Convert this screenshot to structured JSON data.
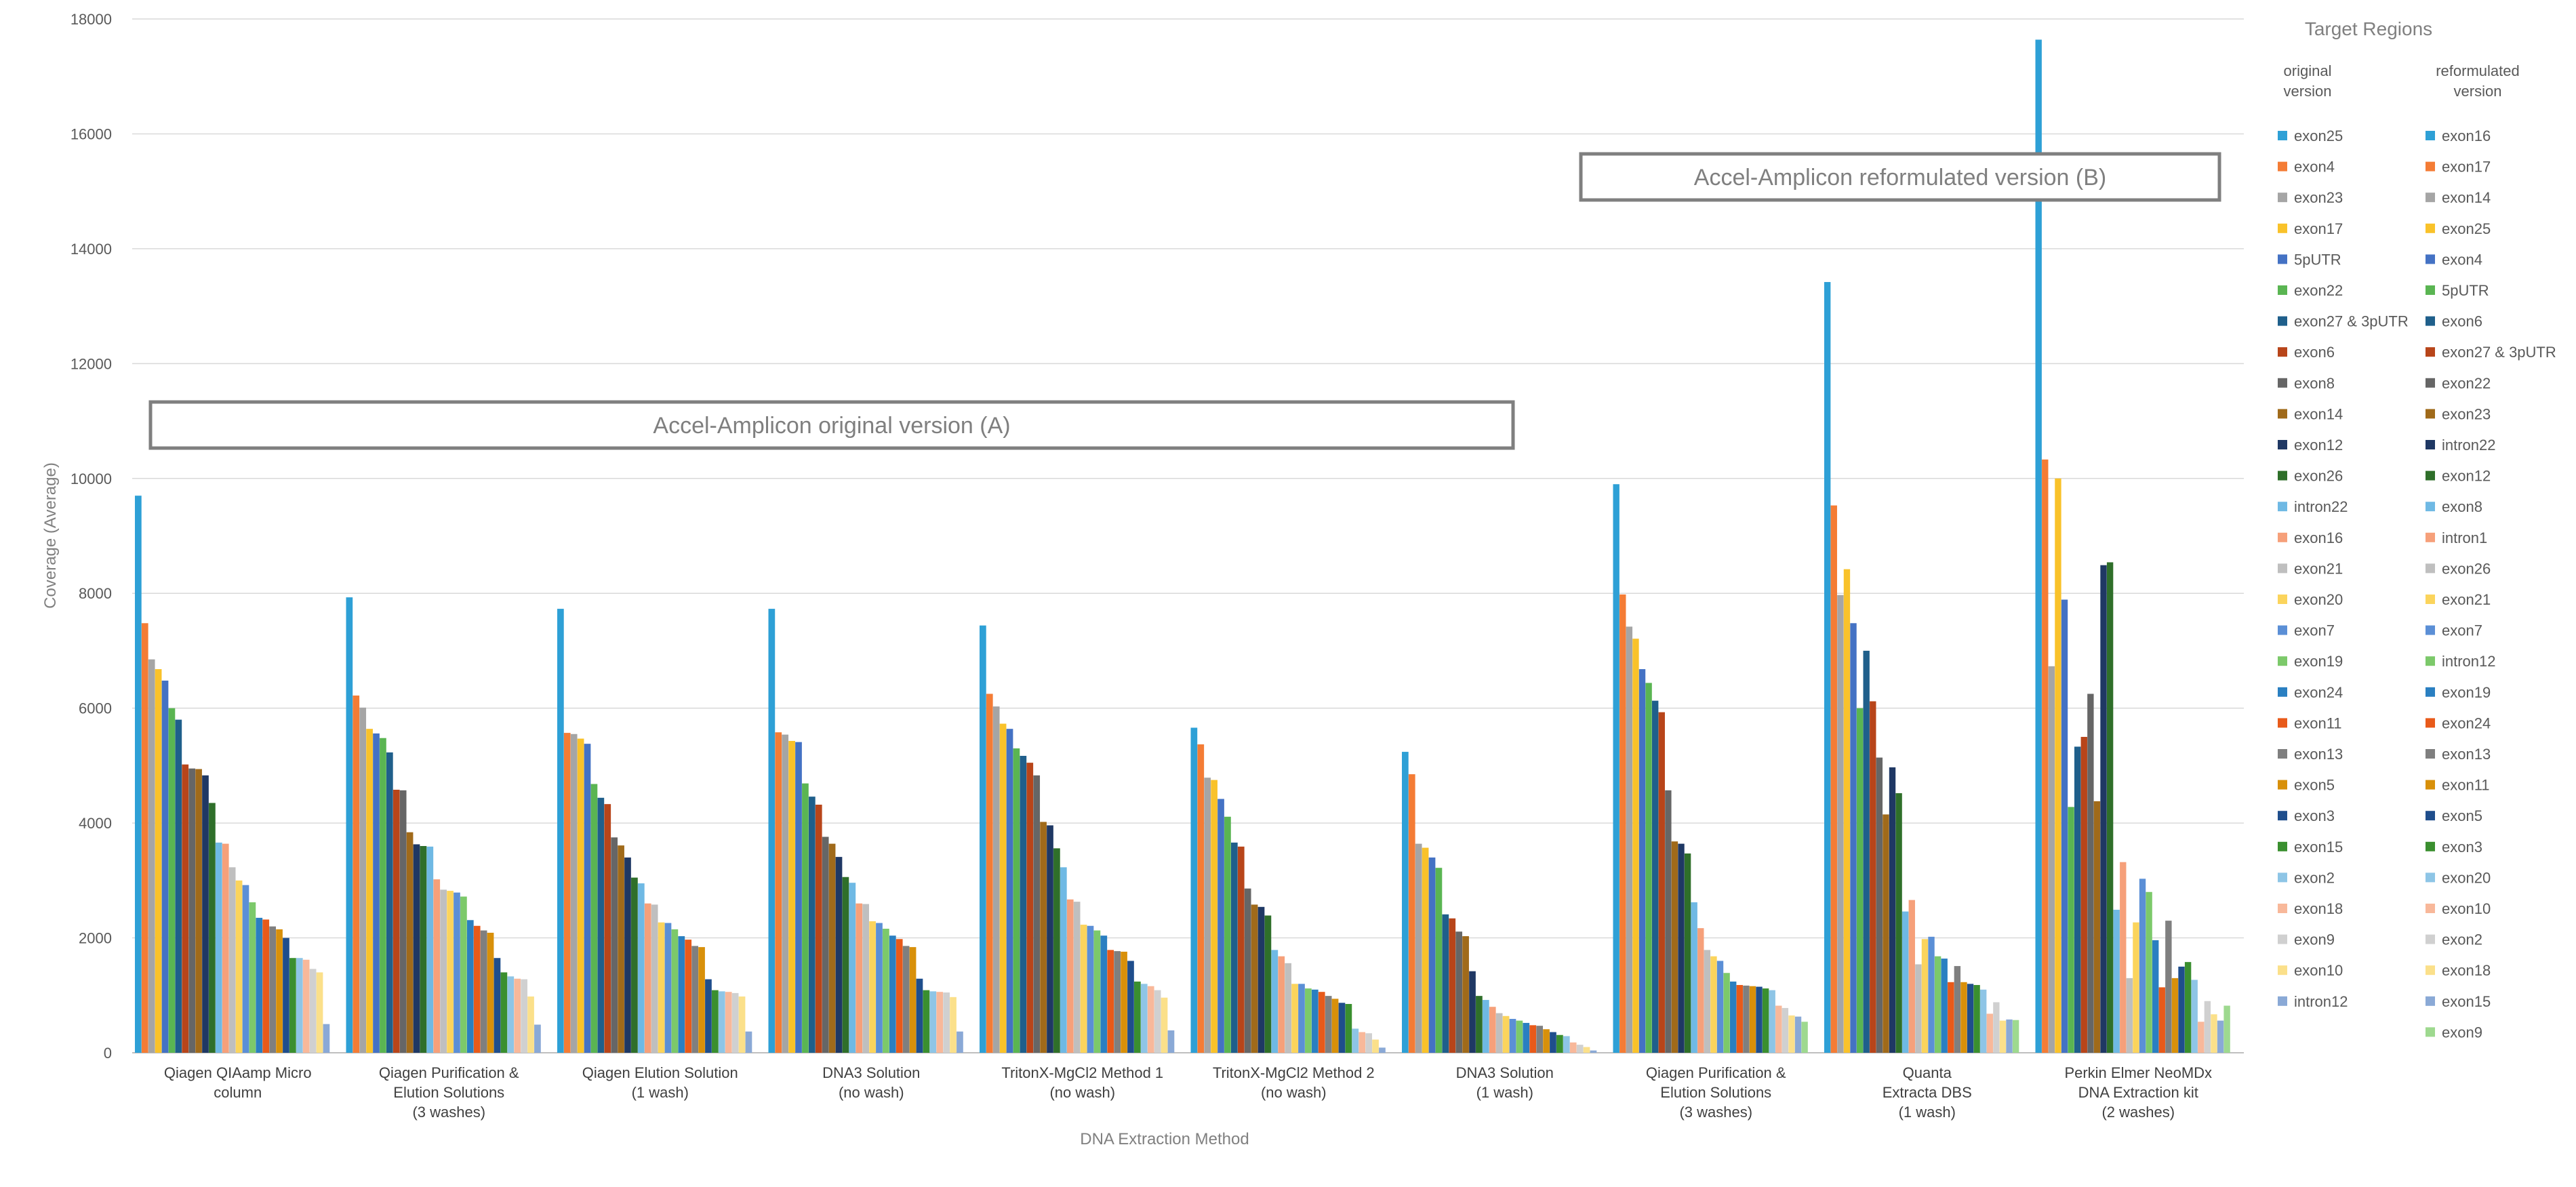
{
  "chart_data": {
    "type": "bar",
    "xlabel": "DNA Extraction Method",
    "ylabel": "Coverage (Average)",
    "ylim": [
      0,
      18000
    ],
    "yticks": [
      "0",
      "2000",
      "4000",
      "6000",
      "8000",
      "10000",
      "12000",
      "14000",
      "16000",
      "18000"
    ],
    "grid": true,
    "legend_position": "right",
    "legend": {
      "title": "Target Regions",
      "col1_head": [
        "original",
        "version"
      ],
      "col2_head": [
        "reformulated",
        "version"
      ],
      "col1": [
        {
          "name": "exon25",
          "color": "#2ea0d6"
        },
        {
          "name": "exon4",
          "color": "#f47c35"
        },
        {
          "name": "exon23",
          "color": "#a5a5a5"
        },
        {
          "name": "exon17",
          "color": "#f9c22a"
        },
        {
          "name": "5pUTR",
          "color": "#4472c4"
        },
        {
          "name": "exon22",
          "color": "#5ab552"
        },
        {
          "name": "exon27 & 3pUTR",
          "color": "#1f5f8b"
        },
        {
          "name": "exon6",
          "color": "#b8451a"
        },
        {
          "name": "exon8",
          "color": "#666666"
        },
        {
          "name": "exon14",
          "color": "#a06a1a"
        },
        {
          "name": "exon12",
          "color": "#1f3864"
        },
        {
          "name": "exon26",
          "color": "#2f6f2a"
        },
        {
          "name": "intron22",
          "color": "#6fb9e4"
        },
        {
          "name": "exon16",
          "color": "#f6a07a"
        },
        {
          "name": "exon21",
          "color": "#bfbfbf"
        },
        {
          "name": "exon20",
          "color": "#fbd45c"
        },
        {
          "name": "exon7",
          "color": "#5b8fd6"
        },
        {
          "name": "exon19",
          "color": "#7cc96a"
        },
        {
          "name": "exon24",
          "color": "#2a7fc1"
        },
        {
          "name": "exon11",
          "color": "#e85a1a"
        },
        {
          "name": "exon13",
          "color": "#7f7f7f"
        },
        {
          "name": "exon5",
          "color": "#d8900a"
        },
        {
          "name": "exon3",
          "color": "#1f4e8c"
        },
        {
          "name": "exon15",
          "color": "#3a8f2f"
        },
        {
          "name": "exon2",
          "color": "#8ec5e6"
        },
        {
          "name": "exon18",
          "color": "#f8b89a"
        },
        {
          "name": "exon9",
          "color": "#d0d0d0"
        },
        {
          "name": "exon10",
          "color": "#fbe08a"
        },
        {
          "name": "intron12",
          "color": "#8aa9d6"
        }
      ],
      "col2": [
        {
          "name": "exon16",
          "color": "#2ea0d6"
        },
        {
          "name": "exon17",
          "color": "#f47c35"
        },
        {
          "name": "exon14",
          "color": "#a5a5a5"
        },
        {
          "name": "exon25",
          "color": "#f9c22a"
        },
        {
          "name": "exon4",
          "color": "#4472c4"
        },
        {
          "name": "5pUTR",
          "color": "#5ab552"
        },
        {
          "name": "exon6",
          "color": "#1f5f8b"
        },
        {
          "name": "exon27 & 3pUTR",
          "color": "#b8451a"
        },
        {
          "name": "exon22",
          "color": "#666666"
        },
        {
          "name": "exon23",
          "color": "#a06a1a"
        },
        {
          "name": "intron22",
          "color": "#1f3864"
        },
        {
          "name": "exon12",
          "color": "#2f6f2a"
        },
        {
          "name": "exon8",
          "color": "#6fb9e4"
        },
        {
          "name": "intron1",
          "color": "#f6a07a"
        },
        {
          "name": "exon26",
          "color": "#bfbfbf"
        },
        {
          "name": "exon21",
          "color": "#fbd45c"
        },
        {
          "name": "exon7",
          "color": "#5b8fd6"
        },
        {
          "name": "intron12",
          "color": "#7cc96a"
        },
        {
          "name": "exon19",
          "color": "#2a7fc1"
        },
        {
          "name": "exon24",
          "color": "#e85a1a"
        },
        {
          "name": "exon13",
          "color": "#7f7f7f"
        },
        {
          "name": "exon11",
          "color": "#d8900a"
        },
        {
          "name": "exon5",
          "color": "#1f4e8c"
        },
        {
          "name": "exon3",
          "color": "#3a8f2f"
        },
        {
          "name": "exon20",
          "color": "#8ec5e6"
        },
        {
          "name": "exon10",
          "color": "#f8b89a"
        },
        {
          "name": "exon2",
          "color": "#d0d0d0"
        },
        {
          "name": "exon18",
          "color": "#fbe08a"
        },
        {
          "name": "exon15",
          "color": "#8aa9d6"
        },
        {
          "name": "exon9",
          "color": "#9ed98f"
        }
      ]
    },
    "annotations": [
      {
        "text": "Accel-Amplicon original version (A)"
      },
      {
        "text": "Accel-Amplicon reformulated version (B)"
      }
    ],
    "categories": [
      {
        "label": [
          "Qiagen QIAamp Micro",
          "column"
        ],
        "version": "A",
        "values": [
          9700,
          7480,
          6850,
          6680,
          6480,
          6000,
          5800,
          5020,
          4950,
          4940,
          4830,
          4350,
          3660,
          3640,
          3230,
          3000,
          2920,
          2620,
          2350,
          2320,
          2200,
          2150,
          2000,
          1650,
          1650,
          1620,
          1460,
          1400,
          500
        ]
      },
      {
        "label": [
          "Qiagen Purification &",
          "Elution Solutions",
          "(3 washes)"
        ],
        "version": "A",
        "values": [
          7930,
          6220,
          6010,
          5640,
          5560,
          5480,
          5230,
          4580,
          4570,
          3840,
          3630,
          3600,
          3590,
          3020,
          2840,
          2820,
          2790,
          2720,
          2310,
          2210,
          2130,
          2090,
          1650,
          1400,
          1330,
          1290,
          1280,
          980,
          490
        ]
      },
      {
        "label": [
          "Qiagen Elution Solution",
          "(1 wash)"
        ],
        "version": "A",
        "values": [
          7730,
          5570,
          5550,
          5470,
          5380,
          4680,
          4440,
          4330,
          3750,
          3610,
          3400,
          3050,
          2950,
          2600,
          2580,
          2270,
          2260,
          2150,
          2030,
          1970,
          1860,
          1840,
          1280,
          1090,
          1070,
          1060,
          1040,
          980,
          370
        ]
      },
      {
        "label": [
          "DNA3 Solution",
          "(no wash)"
        ],
        "version": "A",
        "values": [
          7730,
          5580,
          5540,
          5430,
          5410,
          4690,
          4460,
          4320,
          3760,
          3640,
          3410,
          3060,
          2960,
          2600,
          2590,
          2290,
          2260,
          2160,
          2040,
          1980,
          1860,
          1840,
          1290,
          1090,
          1070,
          1060,
          1050,
          970,
          370
        ]
      },
      {
        "label": [
          "TritonX-MgCl2 Method 1",
          "(no wash)"
        ],
        "version": "A",
        "values": [
          7440,
          6250,
          6030,
          5730,
          5640,
          5300,
          5170,
          5050,
          4830,
          4020,
          3960,
          3560,
          3230,
          2670,
          2630,
          2230,
          2210,
          2130,
          2040,
          1790,
          1770,
          1760,
          1600,
          1240,
          1200,
          1160,
          1090,
          960,
          390
        ]
      },
      {
        "label": [
          "TritonX-MgCl2 Method 2",
          "(no wash)"
        ],
        "version": "A",
        "values": [
          5660,
          5370,
          4790,
          4750,
          4420,
          4110,
          3660,
          3590,
          2860,
          2580,
          2540,
          2390,
          1790,
          1680,
          1560,
          1200,
          1200,
          1120,
          1100,
          1060,
          990,
          940,
          870,
          850,
          420,
          360,
          340,
          230,
          90
        ]
      },
      {
        "label": [
          "DNA3 Solution",
          "(1 wash)"
        ],
        "version": "A",
        "values": [
          5240,
          4850,
          3640,
          3570,
          3400,
          3220,
          2410,
          2340,
          2110,
          2030,
          1420,
          990,
          920,
          800,
          690,
          640,
          590,
          560,
          520,
          480,
          470,
          410,
          360,
          310,
          290,
          180,
          140,
          100,
          40
        ]
      },
      {
        "label": [
          "Qiagen Purification &",
          "Elution Solutions",
          "(3 washes)"
        ],
        "version": "B",
        "values": [
          9900,
          7980,
          7420,
          7210,
          6680,
          6440,
          6130,
          5930,
          4570,
          3680,
          3640,
          3470,
          2620,
          2170,
          1790,
          1680,
          1600,
          1390,
          1240,
          1180,
          1170,
          1160,
          1150,
          1120,
          1090,
          820,
          780,
          650,
          630,
          540
        ]
      },
      {
        "label": [
          "Quanta",
          "Extracta DBS",
          "(1 wash)"
        ],
        "version": "B",
        "values": [
          13420,
          9530,
          7970,
          8420,
          7480,
          6000,
          7000,
          6120,
          5140,
          4150,
          4970,
          4520,
          2460,
          2660,
          1540,
          1980,
          2020,
          1680,
          1640,
          1230,
          1510,
          1230,
          1200,
          1180,
          1100,
          680,
          880,
          560,
          580,
          570
        ]
      },
      {
        "label": [
          "Perkin Elmer NeoMDx",
          "DNA Extraction kit",
          "(2 washes)"
        ],
        "version": "B",
        "values": [
          17640,
          10330,
          6730,
          10000,
          7890,
          4280,
          5330,
          5500,
          6250,
          4380,
          8490,
          8540,
          2490,
          3320,
          1300,
          2270,
          3030,
          2800,
          1960,
          1140,
          2300,
          1300,
          1500,
          1580,
          1270,
          540,
          900,
          670,
          560,
          820
        ]
      }
    ]
  }
}
